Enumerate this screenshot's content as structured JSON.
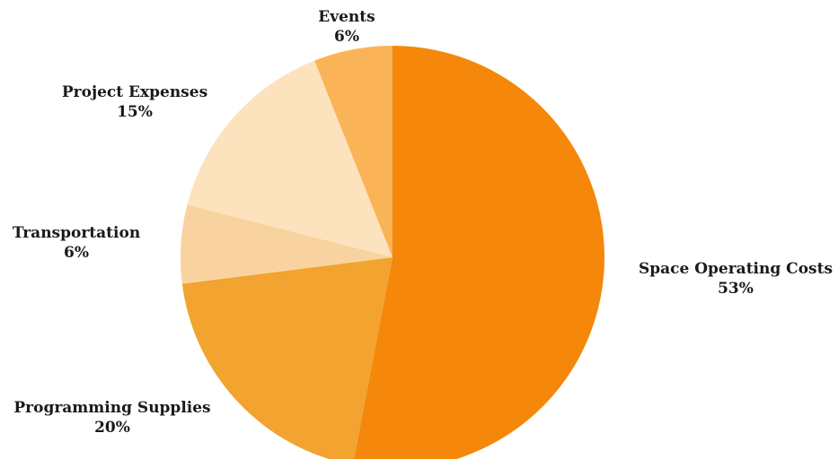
{
  "chart_data": {
    "type": "pie",
    "title": "",
    "start_angle_deg": 0,
    "direction": "clockwise",
    "slices": [
      {
        "label": "Space Operating Costs",
        "value": 53,
        "value_label": "53%",
        "color": "#F5870A"
      },
      {
        "label": "Programming Supplies",
        "value": 20,
        "value_label": "20%",
        "color": "#F2A330"
      },
      {
        "label": "Transportation",
        "value": 6,
        "value_label": "6%",
        "color": "#F8D39F"
      },
      {
        "label": "Project Expenses",
        "value": 15,
        "value_label": "15%",
        "color": "#FCE3BE"
      },
      {
        "label": "Events",
        "value": 6,
        "value_label": "6%",
        "color": "#FBB357"
      }
    ],
    "legend": "none"
  }
}
